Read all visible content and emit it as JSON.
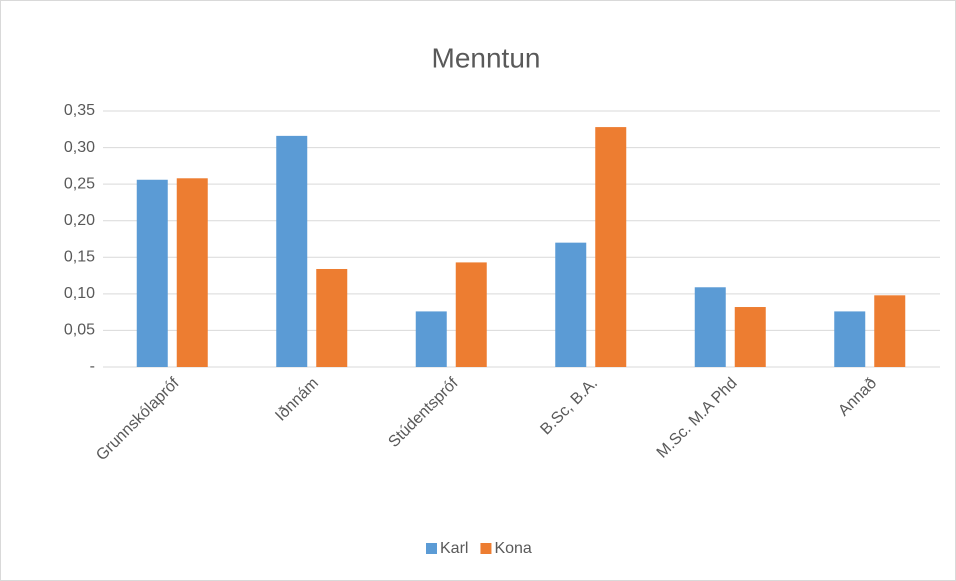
{
  "chart_data": {
    "type": "bar",
    "title": "Menntun",
    "categories": [
      "Grunnskólapróf",
      "Iðnnám",
      "Stúdentspróf",
      "B.Sc, B.A.",
      "M.Sc. M.A Phd",
      "Annað"
    ],
    "series": [
      {
        "name": "Karl",
        "color": "#5b9bd5",
        "values": [
          0.256,
          0.316,
          0.076,
          0.17,
          0.109,
          0.076
        ]
      },
      {
        "name": "Kona",
        "color": "#ed7d31",
        "values": [
          0.258,
          0.134,
          0.143,
          0.328,
          0.082,
          0.098
        ]
      }
    ],
    "ylim": [
      0,
      0.35
    ],
    "yticks": [
      {
        "value": 0,
        "label": "-"
      },
      {
        "value": 0.05,
        "label": "0,05"
      },
      {
        "value": 0.1,
        "label": "0,10"
      },
      {
        "value": 0.15,
        "label": "0,15"
      },
      {
        "value": 0.2,
        "label": "0,20"
      },
      {
        "value": 0.25,
        "label": "0,25"
      },
      {
        "value": 0.3,
        "label": "0,30"
      },
      {
        "value": 0.35,
        "label": "0,35"
      }
    ],
    "grid": true,
    "legend": "bottom"
  }
}
